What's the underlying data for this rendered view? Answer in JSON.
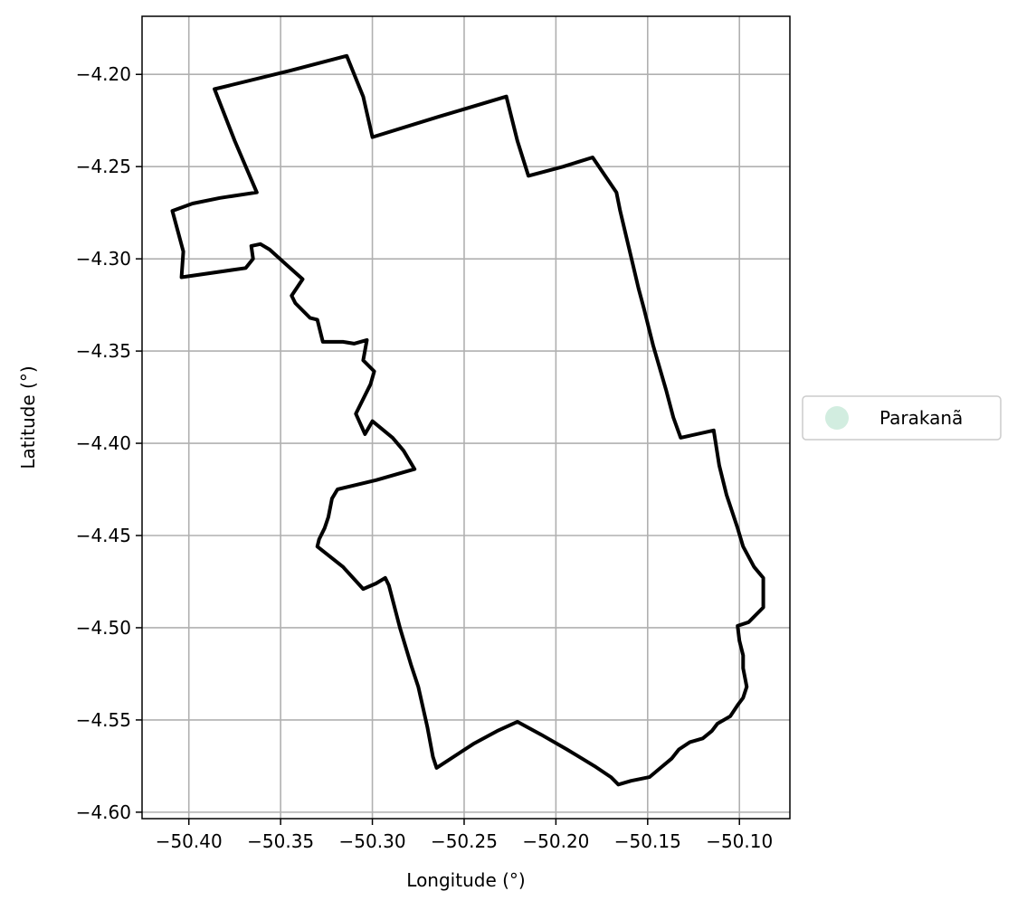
{
  "chart_data": {
    "type": "map",
    "xlabel": "Longitude (°)",
    "ylabel": "Latitude (°)",
    "xlim": [
      -50.4255,
      -50.0725
    ],
    "ylim": [
      -4.6035,
      -4.1685
    ],
    "xticks": [
      -50.4,
      -50.35,
      -50.3,
      -50.25,
      -50.2,
      -50.15,
      -50.1
    ],
    "xtick_labels": [
      "−50.40",
      "−50.35",
      "−50.30",
      "−50.25",
      "−50.20",
      "−50.15",
      "−50.10"
    ],
    "yticks": [
      -4.2,
      -4.25,
      -4.3,
      -4.35,
      -4.4,
      -4.45,
      -4.5,
      -4.55,
      -4.6
    ],
    "ytick_labels": [
      "−4.20",
      "−4.25",
      "−4.30",
      "−4.35",
      "−4.40",
      "−4.45",
      "−4.50",
      "−4.55",
      "−4.60"
    ],
    "grid": true,
    "legend": {
      "placement": "center-right outside",
      "entries": [
        {
          "label": "Parakanã",
          "color": "#d2ede0",
          "marker": "circle"
        }
      ]
    },
    "series": [
      {
        "name": "Parakanã",
        "outline_color": "#000000",
        "fill": "none",
        "coordinates": [
          [
            -50.314,
            -4.19
          ],
          [
            -50.345,
            -4.198
          ],
          [
            -50.386,
            -4.208
          ],
          [
            -50.375,
            -4.236
          ],
          [
            -50.363,
            -4.264
          ],
          [
            -50.383,
            -4.267
          ],
          [
            -50.398,
            -4.27
          ],
          [
            -50.409,
            -4.274
          ],
          [
            -50.403,
            -4.296
          ],
          [
            -50.404,
            -4.31
          ],
          [
            -50.369,
            -4.305
          ],
          [
            -50.365,
            -4.3
          ],
          [
            -50.366,
            -4.293
          ],
          [
            -50.361,
            -4.292
          ],
          [
            -50.356,
            -4.295
          ],
          [
            -50.347,
            -4.303
          ],
          [
            -50.338,
            -4.311
          ],
          [
            -50.344,
            -4.32
          ],
          [
            -50.342,
            -4.324
          ],
          [
            -50.334,
            -4.332
          ],
          [
            -50.33,
            -4.333
          ],
          [
            -50.327,
            -4.345
          ],
          [
            -50.316,
            -4.345
          ],
          [
            -50.31,
            -4.346
          ],
          [
            -50.303,
            -4.344
          ],
          [
            -50.305,
            -4.355
          ],
          [
            -50.299,
            -4.361
          ],
          [
            -50.301,
            -4.368
          ],
          [
            -50.309,
            -4.384
          ],
          [
            -50.304,
            -4.395
          ],
          [
            -50.3,
            -4.388
          ],
          [
            -50.289,
            -4.397
          ],
          [
            -50.283,
            -4.404
          ],
          [
            -50.277,
            -4.414
          ],
          [
            -50.298,
            -4.42
          ],
          [
            -50.319,
            -4.425
          ],
          [
            -50.322,
            -4.43
          ],
          [
            -50.324,
            -4.44
          ],
          [
            -50.326,
            -4.446
          ],
          [
            -50.329,
            -4.452
          ],
          [
            -50.33,
            -4.456
          ],
          [
            -50.316,
            -4.467
          ],
          [
            -50.305,
            -4.479
          ],
          [
            -50.298,
            -4.476
          ],
          [
            -50.293,
            -4.473
          ],
          [
            -50.291,
            -4.477
          ],
          [
            -50.285,
            -4.5
          ],
          [
            -50.279,
            -4.52
          ],
          [
            -50.275,
            -4.532
          ],
          [
            -50.27,
            -4.554
          ],
          [
            -50.267,
            -4.57
          ],
          [
            -50.265,
            -4.576
          ],
          [
            -50.245,
            -4.563
          ],
          [
            -50.232,
            -4.556
          ],
          [
            -50.221,
            -4.551
          ],
          [
            -50.208,
            -4.558
          ],
          [
            -50.194,
            -4.566
          ],
          [
            -50.179,
            -4.575
          ],
          [
            -50.17,
            -4.581
          ],
          [
            -50.166,
            -4.585
          ],
          [
            -50.159,
            -4.583
          ],
          [
            -50.149,
            -4.581
          ],
          [
            -50.143,
            -4.576
          ],
          [
            -50.137,
            -4.571
          ],
          [
            -50.133,
            -4.566
          ],
          [
            -50.127,
            -4.562
          ],
          [
            -50.12,
            -4.56
          ],
          [
            -50.115,
            -4.556
          ],
          [
            -50.112,
            -4.552
          ],
          [
            -50.105,
            -4.548
          ],
          [
            -50.101,
            -4.542
          ],
          [
            -50.098,
            -4.538
          ],
          [
            -50.096,
            -4.532
          ],
          [
            -50.098,
            -4.522
          ],
          [
            -50.098,
            -4.515
          ],
          [
            -50.1,
            -4.507
          ],
          [
            -50.101,
            -4.499
          ],
          [
            -50.095,
            -4.497
          ],
          [
            -50.087,
            -4.489
          ],
          [
            -50.087,
            -4.482
          ],
          [
            -50.087,
            -4.473
          ],
          [
            -50.092,
            -4.467
          ],
          [
            -50.098,
            -4.456
          ],
          [
            -50.101,
            -4.446
          ],
          [
            -50.107,
            -4.428
          ],
          [
            -50.111,
            -4.412
          ],
          [
            -50.114,
            -4.393
          ],
          [
            -50.132,
            -4.397
          ],
          [
            -50.136,
            -4.386
          ],
          [
            -50.14,
            -4.371
          ],
          [
            -50.147,
            -4.347
          ],
          [
            -50.152,
            -4.327
          ],
          [
            -50.155,
            -4.316
          ],
          [
            -50.159,
            -4.299
          ],
          [
            -50.165,
            -4.274
          ],
          [
            -50.167,
            -4.264
          ],
          [
            -50.18,
            -4.245
          ],
          [
            -50.196,
            -4.25
          ],
          [
            -50.215,
            -4.255
          ],
          [
            -50.221,
            -4.236
          ],
          [
            -50.227,
            -4.212
          ],
          [
            -50.264,
            -4.223
          ],
          [
            -50.3,
            -4.234
          ],
          [
            -50.305,
            -4.212
          ],
          [
            -50.314,
            -4.19
          ]
        ]
      }
    ]
  }
}
